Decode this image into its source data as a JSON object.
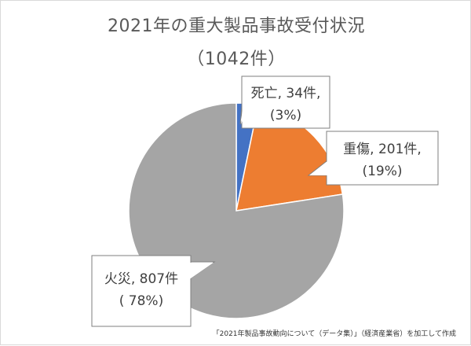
{
  "chart_data": {
    "type": "pie",
    "title": "2021年の重大製品事故受付状況",
    "subtitle": "（1042件）",
    "slices": [
      {
        "name": "死亡",
        "value": 34,
        "label_line1": "死亡, 34件,",
        "label_line2": "(3%)",
        "color": "#4472c4"
      },
      {
        "name": "重傷",
        "value": 201,
        "label_line1": "重傷, 201件,",
        "label_line2": "(19%)",
        "color": "#ed7d31"
      },
      {
        "name": "火災",
        "value": 807,
        "label_line1": "火災, 807件",
        "label_line2": "( 78%)",
        "color": "#a5a5a5"
      }
    ],
    "source": "「2021年製品事故動向について（データ集）」（経済産業省）を加工して作成"
  }
}
